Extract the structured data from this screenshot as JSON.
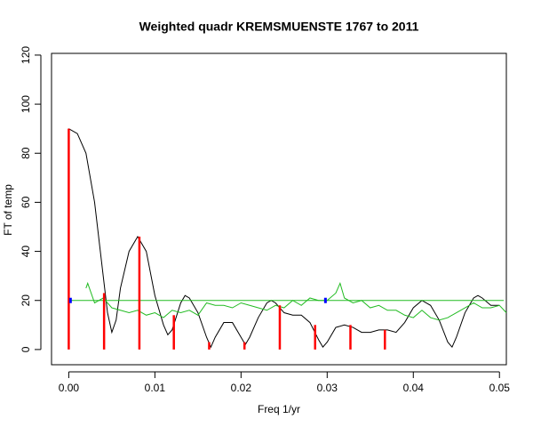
{
  "chart_data": {
    "type": "line",
    "title": "Weighted quadr KREMSMUENSTE 1767 to 2011",
    "xlabel": "Freq 1/yr",
    "ylabel": "FT of temp",
    "xlim": [
      -0.002,
      0.0508
    ],
    "ylim": [
      -6.2,
      120.7
    ],
    "xticks": [
      {
        "value": 0,
        "label": "0.00"
      },
      {
        "value": 0.01,
        "label": "0.01"
      },
      {
        "value": 0.02,
        "label": "0.02"
      },
      {
        "value": 0.03,
        "label": "0.03"
      },
      {
        "value": 0.04,
        "label": "0.04"
      },
      {
        "value": 0.05,
        "label": "0.05"
      }
    ],
    "yticks": [
      0,
      20,
      40,
      60,
      80,
      100,
      120
    ],
    "grid": false,
    "series": [
      {
        "style": "line",
        "color": "#000000",
        "x": [
          0,
          0.001,
          0.002,
          0.003,
          0.004,
          0.0045,
          0.005,
          0.0055,
          0.006,
          0.007,
          0.008,
          0.009,
          0.01,
          0.011,
          0.0115,
          0.012,
          0.013,
          0.0135,
          0.014,
          0.015,
          0.016,
          0.0165,
          0.017,
          0.018,
          0.019,
          0.02,
          0.0205,
          0.021,
          0.022,
          0.023,
          0.0235,
          0.024,
          0.025,
          0.026,
          0.027,
          0.028,
          0.029,
          0.0295,
          0.03,
          0.031,
          0.032,
          0.033,
          0.034,
          0.035,
          0.036,
          0.037,
          0.038,
          0.039,
          0.04,
          0.041,
          0.042,
          0.043,
          0.044,
          0.0445,
          0.045,
          0.046,
          0.047,
          0.0475,
          0.048,
          0.049,
          0.05
        ],
        "values": [
          90,
          88,
          80,
          60,
          30,
          15,
          7,
          12,
          25,
          40,
          46,
          40,
          22,
          10,
          6,
          8,
          19,
          22,
          21,
          15,
          5,
          1,
          5,
          11,
          11,
          5,
          2,
          5,
          13,
          19,
          20,
          19,
          15,
          14,
          14,
          11,
          4,
          1,
          3,
          9,
          10,
          9,
          7,
          7,
          8,
          8,
          7,
          11,
          17,
          20,
          18,
          12,
          3,
          1,
          5,
          15,
          21,
          22,
          21,
          18,
          18
        ]
      },
      {
        "style": "line",
        "color": "#22bb22",
        "x": [
          0.002,
          0.0022,
          0.003,
          0.004,
          0.005,
          0.006,
          0.007,
          0.008,
          0.009,
          0.01,
          0.011,
          0.012,
          0.013,
          0.014,
          0.015,
          0.016,
          0.017,
          0.018,
          0.019,
          0.02,
          0.021,
          0.022,
          0.023,
          0.024,
          0.025,
          0.026,
          0.027,
          0.028,
          0.029,
          0.03,
          0.031,
          0.0315,
          0.032,
          0.033,
          0.034,
          0.035,
          0.036,
          0.037,
          0.038,
          0.039,
          0.04,
          0.041,
          0.042,
          0.043,
          0.044,
          0.045,
          0.046,
          0.047,
          0.048,
          0.049,
          0.05,
          0.0508
        ],
        "values": [
          25,
          27,
          19,
          21,
          17,
          16,
          15,
          16,
          14,
          15,
          13,
          16,
          15,
          16,
          14,
          19,
          18,
          18,
          17,
          19,
          18,
          17,
          16,
          18,
          17,
          20,
          18,
          21,
          20,
          20,
          23,
          27,
          21,
          19,
          20,
          17,
          18,
          16,
          16,
          14,
          13,
          16,
          13,
          12,
          13,
          15,
          17,
          19,
          17,
          17,
          18,
          15
        ]
      },
      {
        "style": "line",
        "color": "#22bb22",
        "x": [
          0,
          0.0505
        ],
        "values": [
          20,
          20
        ]
      },
      {
        "style": "stem",
        "color": "#ff0000",
        "x": [
          0,
          0.0041,
          0.0082,
          0.0122,
          0.0163,
          0.0204,
          0.0245,
          0.0286,
          0.0327,
          0.0367
        ],
        "values": [
          90,
          23,
          46,
          14,
          3,
          3,
          18,
          10,
          10,
          8
        ]
      },
      {
        "style": "point",
        "color": "#0000ff",
        "x": [
          0.0002,
          0.0298
        ],
        "values": [
          20,
          20
        ]
      }
    ]
  }
}
